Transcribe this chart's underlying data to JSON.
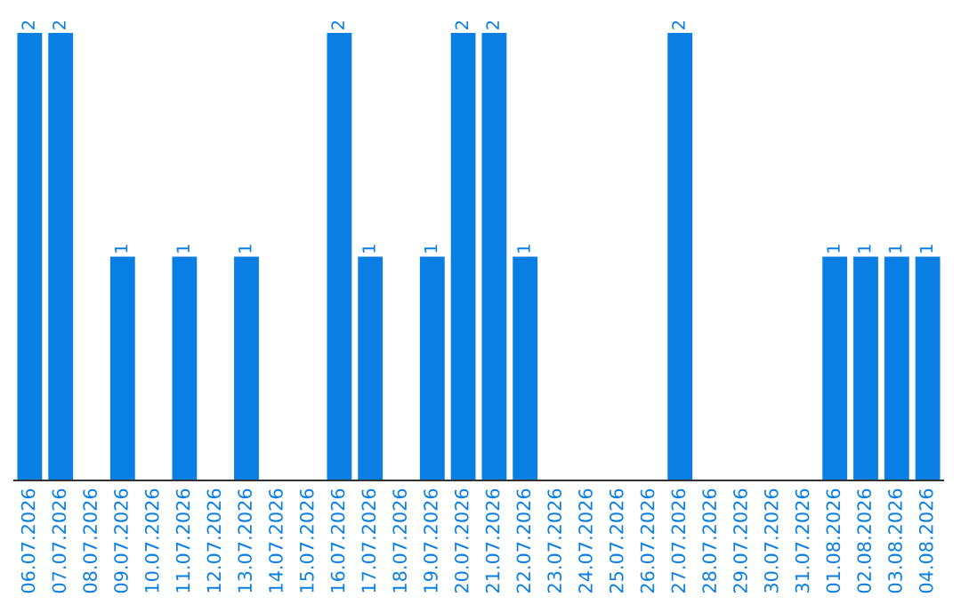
{
  "chart_data": {
    "type": "bar",
    "categories": [
      "06.07.2026",
      "07.07.2026",
      "08.07.2026",
      "09.07.2026",
      "10.07.2026",
      "11.07.2026",
      "12.07.2026",
      "13.07.2026",
      "14.07.2026",
      "15.07.2026",
      "16.07.2026",
      "17.07.2026",
      "18.07.2026",
      "19.07.2026",
      "20.07.2026",
      "21.07.2026",
      "22.07.2026",
      "23.07.2026",
      "24.07.2026",
      "25.07.2026",
      "26.07.2026",
      "27.07.2026",
      "28.07.2026",
      "29.07.2026",
      "30.07.2026",
      "31.07.2026",
      "01.08.2026",
      "02.08.2026",
      "03.08.2026",
      "04.08.2026"
    ],
    "values": [
      2,
      2,
      0,
      1,
      0,
      1,
      0,
      1,
      0,
      0,
      2,
      1,
      0,
      1,
      2,
      2,
      1,
      0,
      0,
      0,
      0,
      2,
      0,
      0,
      0,
      0,
      1,
      1,
      1,
      1
    ],
    "value_labels": [
      "2",
      "2",
      null,
      "1",
      null,
      "1",
      null,
      "1",
      null,
      null,
      "2",
      "1",
      null,
      "1",
      "2",
      "2",
      "1",
      null,
      null,
      null,
      null,
      "2",
      null,
      null,
      null,
      null,
      "1",
      "1",
      "1",
      "1"
    ],
    "color": "#0a7fe3",
    "grid": false,
    "legend": false
  }
}
